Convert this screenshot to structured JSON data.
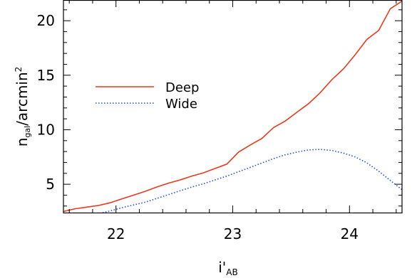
{
  "chart_data": {
    "type": "line",
    "title": "",
    "xlabel": "i'",
    "xlabel_sub": "AB",
    "ylabel": "n",
    "ylabel_sub": "gal",
    "ylabel_rest": "/arcmin",
    "ylabel_sup": "2",
    "xlim": [
      21.55,
      24.45
    ],
    "ylim": [
      2.4,
      21.9
    ],
    "xticks": [
      22,
      23,
      24
    ],
    "yticks": [
      5,
      10,
      15,
      20
    ],
    "legend": {
      "placement": "left-middle"
    },
    "grid": false,
    "series": [
      {
        "name": "Deep",
        "color": "#e8391e",
        "style": "solid",
        "x": [
          21.55,
          21.65,
          21.75,
          21.85,
          21.95,
          22.05,
          22.15,
          22.25,
          22.35,
          22.45,
          22.55,
          22.65,
          22.75,
          22.85,
          22.95,
          23.05,
          23.15,
          23.25,
          23.35,
          23.45,
          23.55,
          23.65,
          23.75,
          23.85,
          23.95,
          24.05,
          24.15,
          24.25,
          24.35,
          24.45
        ],
        "y": [
          2.5,
          2.75,
          2.9,
          3.05,
          3.3,
          3.65,
          4.0,
          4.35,
          4.75,
          5.1,
          5.4,
          5.75,
          6.05,
          6.45,
          6.85,
          7.95,
          8.6,
          9.2,
          10.2,
          10.8,
          11.6,
          12.4,
          13.4,
          14.6,
          15.6,
          16.9,
          18.3,
          19.1,
          21.1,
          21.8
        ]
      },
      {
        "name": "Wide",
        "color": "#1f4fcc",
        "style": "dotted",
        "x": [
          21.55,
          21.65,
          21.75,
          21.85,
          21.95,
          22.05,
          22.15,
          22.25,
          22.35,
          22.45,
          22.55,
          22.65,
          22.75,
          22.85,
          22.95,
          23.05,
          23.15,
          23.25,
          23.35,
          23.45,
          23.55,
          23.65,
          23.75,
          23.85,
          23.95,
          24.05,
          24.15,
          24.25,
          24.35,
          24.45
        ],
        "y": [
          1.7,
          1.9,
          2.1,
          2.3,
          2.55,
          2.85,
          3.1,
          3.35,
          3.7,
          4.05,
          4.4,
          4.75,
          5.05,
          5.4,
          5.75,
          6.15,
          6.55,
          6.95,
          7.35,
          7.7,
          7.95,
          8.15,
          8.2,
          8.1,
          7.85,
          7.5,
          6.95,
          6.2,
          5.35,
          4.5
        ]
      }
    ]
  }
}
